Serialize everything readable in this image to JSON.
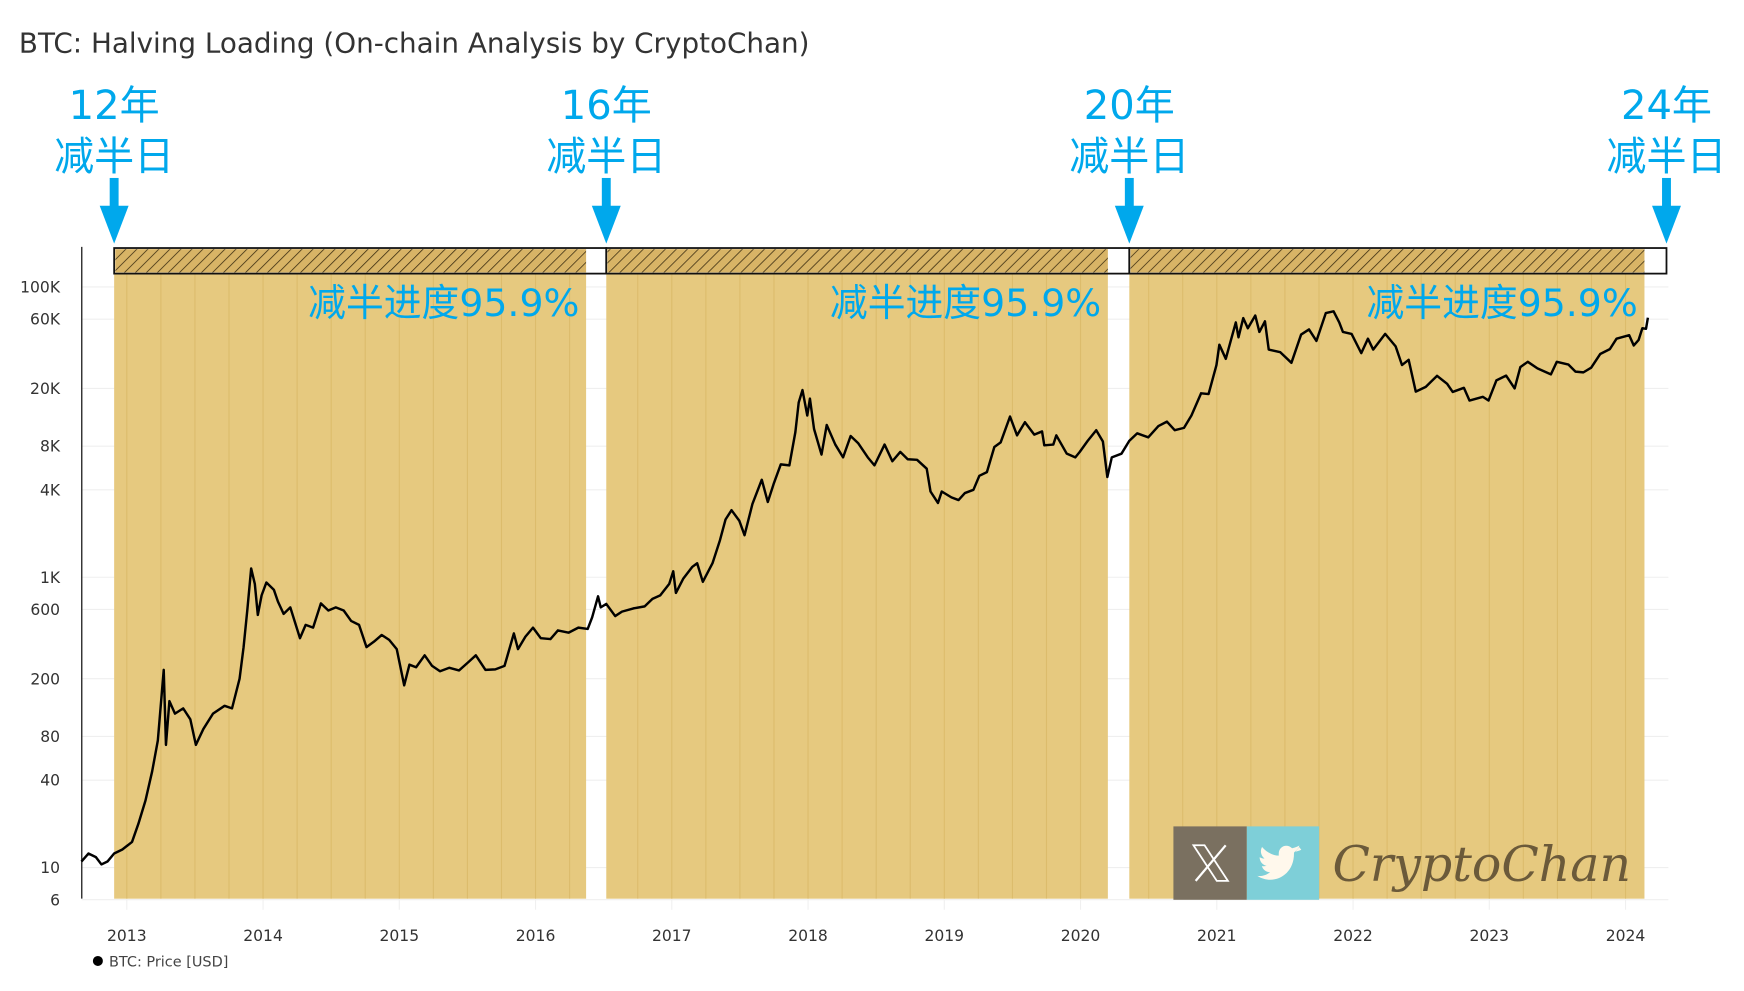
{
  "chart_data": {
    "type": "line",
    "title": "BTC: Halving Loading (On-chain Analysis by CryptoChan)",
    "y_scale": "log",
    "ylim": [
      6,
      150000
    ],
    "xlim": [
      "2012-09-01",
      "2024-05-01"
    ],
    "grid": true,
    "y_ticks": [
      {
        "v": 100000,
        "label": "100K"
      },
      {
        "v": 60000,
        "label": "60K"
      },
      {
        "v": 20000,
        "label": "20K"
      },
      {
        "v": 8000,
        "label": "8K"
      },
      {
        "v": 4000,
        "label": "4K"
      },
      {
        "v": 1000,
        "label": "1K"
      },
      {
        "v": 600,
        "label": "600"
      },
      {
        "v": 200,
        "label": "200"
      },
      {
        "v": 80,
        "label": "80"
      },
      {
        "v": 40,
        "label": "40"
      },
      {
        "v": 10,
        "label": "10"
      },
      {
        "v": 6,
        "label": "6"
      }
    ],
    "x_ticks": [
      "2013",
      "2014",
      "2015",
      "2016",
      "2017",
      "2018",
      "2019",
      "2020",
      "2021",
      "2022",
      "2023",
      "2024"
    ],
    "legend": {
      "placement": "bottom-left",
      "entries": [
        {
          "name": "BTC: Price [USD]",
          "color": "#000000"
        }
      ]
    },
    "halvings": [
      {
        "date": "2012-11-28",
        "year_label": "12年",
        "day_label": "减半日"
      },
      {
        "date": "2016-07-09",
        "year_label": "16年",
        "day_label": "减半日"
      },
      {
        "date": "2020-05-11",
        "year_label": "20年",
        "day_label": "减半日"
      },
      {
        "date": "2024-04-20",
        "year_label": "24年",
        "day_label": "减半日"
      }
    ],
    "progress_percent": 95.9,
    "progress_label": "减半进度95.9%",
    "colors": {
      "shade": "#e6c97f",
      "line_in_shade": "#6b4f10",
      "line": "#000000",
      "annotation": "#00a8ec"
    },
    "series": [
      {
        "name": "BTC: Price [USD]",
        "points": [
          [
            "2012-09-01",
            11
          ],
          [
            "2012-09-20",
            12.5
          ],
          [
            "2012-10-10",
            11.8
          ],
          [
            "2012-10-25",
            10.5
          ],
          [
            "2012-11-10",
            11
          ],
          [
            "2012-11-28",
            12.5
          ],
          [
            "2012-12-20",
            13.3
          ],
          [
            "2013-01-15",
            15
          ],
          [
            "2013-02-01",
            20
          ],
          [
            "2013-02-20",
            29
          ],
          [
            "2013-03-10",
            46
          ],
          [
            "2013-03-25",
            75
          ],
          [
            "2013-04-10",
            230
          ],
          [
            "2013-04-16",
            70
          ],
          [
            "2013-04-25",
            140
          ],
          [
            "2013-05-10",
            115
          ],
          [
            "2013-06-01",
            125
          ],
          [
            "2013-06-20",
            105
          ],
          [
            "2013-07-05",
            70
          ],
          [
            "2013-07-25",
            90
          ],
          [
            "2013-08-20",
            115
          ],
          [
            "2013-09-20",
            130
          ],
          [
            "2013-10-10",
            125
          ],
          [
            "2013-10-30",
            200
          ],
          [
            "2013-11-10",
            330
          ],
          [
            "2013-11-20",
            600
          ],
          [
            "2013-11-30",
            1150
          ],
          [
            "2013-12-10",
            900
          ],
          [
            "2013-12-18",
            550
          ],
          [
            "2013-12-28",
            750
          ],
          [
            "2014-01-10",
            920
          ],
          [
            "2014-01-30",
            820
          ],
          [
            "2014-02-10",
            680
          ],
          [
            "2014-02-25",
            560
          ],
          [
            "2014-03-15",
            620
          ],
          [
            "2014-04-10",
            380
          ],
          [
            "2014-04-25",
            470
          ],
          [
            "2014-05-15",
            450
          ],
          [
            "2014-06-05",
            660
          ],
          [
            "2014-06-25",
            590
          ],
          [
            "2014-07-15",
            620
          ],
          [
            "2014-08-05",
            590
          ],
          [
            "2014-08-25",
            500
          ],
          [
            "2014-09-15",
            470
          ],
          [
            "2014-10-05",
            330
          ],
          [
            "2014-10-25",
            360
          ],
          [
            "2014-11-15",
            400
          ],
          [
            "2014-12-05",
            370
          ],
          [
            "2014-12-25",
            320
          ],
          [
            "2015-01-14",
            180
          ],
          [
            "2015-01-28",
            250
          ],
          [
            "2015-02-15",
            240
          ],
          [
            "2015-03-10",
            290
          ],
          [
            "2015-03-30",
            245
          ],
          [
            "2015-04-20",
            225
          ],
          [
            "2015-05-15",
            238
          ],
          [
            "2015-06-10",
            228
          ],
          [
            "2015-07-05",
            260
          ],
          [
            "2015-07-25",
            290
          ],
          [
            "2015-08-20",
            230
          ],
          [
            "2015-09-15",
            232
          ],
          [
            "2015-10-10",
            245
          ],
          [
            "2015-11-04",
            410
          ],
          [
            "2015-11-15",
            320
          ],
          [
            "2015-12-05",
            390
          ],
          [
            "2015-12-25",
            450
          ],
          [
            "2016-01-15",
            380
          ],
          [
            "2016-02-10",
            375
          ],
          [
            "2016-03-01",
            430
          ],
          [
            "2016-03-30",
            415
          ],
          [
            "2016-04-25",
            450
          ],
          [
            "2016-05-20",
            440
          ],
          [
            "2016-06-01",
            530
          ],
          [
            "2016-06-17",
            740
          ],
          [
            "2016-06-24",
            620
          ],
          [
            "2016-07-09",
            655
          ],
          [
            "2016-08-02",
            540
          ],
          [
            "2016-08-20",
            580
          ],
          [
            "2016-09-20",
            610
          ],
          [
            "2016-10-20",
            630
          ],
          [
            "2016-11-10",
            710
          ],
          [
            "2016-12-01",
            750
          ],
          [
            "2016-12-25",
            900
          ],
          [
            "2017-01-05",
            1100
          ],
          [
            "2017-01-12",
            780
          ],
          [
            "2017-02-01",
            980
          ],
          [
            "2017-02-25",
            1180
          ],
          [
            "2017-03-10",
            1250
          ],
          [
            "2017-03-25",
            930
          ],
          [
            "2017-04-20",
            1250
          ],
          [
            "2017-05-10",
            1800
          ],
          [
            "2017-05-25",
            2500
          ],
          [
            "2017-06-10",
            2900
          ],
          [
            "2017-07-01",
            2450
          ],
          [
            "2017-07-15",
            1950
          ],
          [
            "2017-08-05",
            3200
          ],
          [
            "2017-08-30",
            4700
          ],
          [
            "2017-09-15",
            3300
          ],
          [
            "2017-10-01",
            4400
          ],
          [
            "2017-10-20",
            6000
          ],
          [
            "2017-11-12",
            5900
          ],
          [
            "2017-11-28",
            10000
          ],
          [
            "2017-12-07",
            16000
          ],
          [
            "2017-12-17",
            19500
          ],
          [
            "2017-12-30",
            13000
          ],
          [
            "2018-01-06",
            17000
          ],
          [
            "2018-01-17",
            10500
          ],
          [
            "2018-02-06",
            7000
          ],
          [
            "2018-02-20",
            11200
          ],
          [
            "2018-03-15",
            8200
          ],
          [
            "2018-04-05",
            6700
          ],
          [
            "2018-04-25",
            9400
          ],
          [
            "2018-05-15",
            8400
          ],
          [
            "2018-06-10",
            6700
          ],
          [
            "2018-06-28",
            5900
          ],
          [
            "2018-07-25",
            8200
          ],
          [
            "2018-08-15",
            6300
          ],
          [
            "2018-09-05",
            7300
          ],
          [
            "2018-09-25",
            6500
          ],
          [
            "2018-10-20",
            6450
          ],
          [
            "2018-11-15",
            5600
          ],
          [
            "2018-11-25",
            3900
          ],
          [
            "2018-12-15",
            3250
          ],
          [
            "2018-12-25",
            3900
          ],
          [
            "2019-01-20",
            3550
          ],
          [
            "2019-02-08",
            3400
          ],
          [
            "2019-02-25",
            3800
          ],
          [
            "2019-03-20",
            4000
          ],
          [
            "2019-04-05",
            5000
          ],
          [
            "2019-04-25",
            5300
          ],
          [
            "2019-05-15",
            7900
          ],
          [
            "2019-06-01",
            8500
          ],
          [
            "2019-06-26",
            12800
          ],
          [
            "2019-07-15",
            9500
          ],
          [
            "2019-08-05",
            11700
          ],
          [
            "2019-08-30",
            9600
          ],
          [
            "2019-09-20",
            10100
          ],
          [
            "2019-09-26",
            8100
          ],
          [
            "2019-10-20",
            8200
          ],
          [
            "2019-10-28",
            9500
          ],
          [
            "2019-11-25",
            7100
          ],
          [
            "2019-12-18",
            6700
          ],
          [
            "2019-12-30",
            7300
          ],
          [
            "2020-01-20",
            8700
          ],
          [
            "2020-02-12",
            10300
          ],
          [
            "2020-03-01",
            8600
          ],
          [
            "2020-03-13",
            4900
          ],
          [
            "2020-03-25",
            6700
          ],
          [
            "2020-04-20",
            7100
          ],
          [
            "2020-05-11",
            8700
          ],
          [
            "2020-06-01",
            9800
          ],
          [
            "2020-07-01",
            9200
          ],
          [
            "2020-07-28",
            11000
          ],
          [
            "2020-08-20",
            11800
          ],
          [
            "2020-09-10",
            10300
          ],
          [
            "2020-10-05",
            10700
          ],
          [
            "2020-10-25",
            13000
          ],
          [
            "2020-11-20",
            18500
          ],
          [
            "2020-12-10",
            18300
          ],
          [
            "2020-12-31",
            29000
          ],
          [
            "2021-01-08",
            40000
          ],
          [
            "2021-01-25",
            32000
          ],
          [
            "2021-02-10",
            45000
          ],
          [
            "2021-02-21",
            57000
          ],
          [
            "2021-02-28",
            45000
          ],
          [
            "2021-03-13",
            61000
          ],
          [
            "2021-03-25",
            52000
          ],
          [
            "2021-04-14",
            63500
          ],
          [
            "2021-04-25",
            49000
          ],
          [
            "2021-05-10",
            58000
          ],
          [
            "2021-05-20",
            37000
          ],
          [
            "2021-06-20",
            35500
          ],
          [
            "2021-07-20",
            30000
          ],
          [
            "2021-08-15",
            47000
          ],
          [
            "2021-09-05",
            51000
          ],
          [
            "2021-09-25",
            42500
          ],
          [
            "2021-10-20",
            66000
          ],
          [
            "2021-11-10",
            68000
          ],
          [
            "2021-11-25",
            57000
          ],
          [
            "2021-12-05",
            49000
          ],
          [
            "2021-12-28",
            47500
          ],
          [
            "2022-01-23",
            35000
          ],
          [
            "2022-02-10",
            44000
          ],
          [
            "2022-02-24",
            37000
          ],
          [
            "2022-03-28",
            47500
          ],
          [
            "2022-04-25",
            39000
          ],
          [
            "2022-05-12",
            29000
          ],
          [
            "2022-05-30",
            31500
          ],
          [
            "2022-06-18",
            19000
          ],
          [
            "2022-07-15",
            20500
          ],
          [
            "2022-08-14",
            24400
          ],
          [
            "2022-09-10",
            21500
          ],
          [
            "2022-09-25",
            18900
          ],
          [
            "2022-10-25",
            20200
          ],
          [
            "2022-11-09",
            16500
          ],
          [
            "2022-12-15",
            17500
          ],
          [
            "2022-12-30",
            16500
          ],
          [
            "2023-01-20",
            22700
          ],
          [
            "2023-02-15",
            24500
          ],
          [
            "2023-03-10",
            20000
          ],
          [
            "2023-03-25",
            28000
          ],
          [
            "2023-04-14",
            30500
          ],
          [
            "2023-05-10",
            27500
          ],
          [
            "2023-06-15",
            25000
          ],
          [
            "2023-07-01",
            30500
          ],
          [
            "2023-08-01",
            29200
          ],
          [
            "2023-08-20",
            26100
          ],
          [
            "2023-09-10",
            25800
          ],
          [
            "2023-10-01",
            27800
          ],
          [
            "2023-10-25",
            34500
          ],
          [
            "2023-11-20",
            37300
          ],
          [
            "2023-12-08",
            44000
          ],
          [
            "2024-01-11",
            46500
          ],
          [
            "2024-01-23",
            39500
          ],
          [
            "2024-02-05",
            43000
          ],
          [
            "2024-02-15",
            52000
          ],
          [
            "2024-02-25",
            51500
          ],
          [
            "2024-03-01",
            61500
          ]
        ]
      }
    ]
  },
  "watermark": {
    "text": "CryptoChan",
    "icons": [
      "x-logo-icon",
      "twitter-bird-icon"
    ],
    "colors": {
      "x_bg": "#7a7060",
      "twitter_bg": "#7ecfd8"
    }
  }
}
